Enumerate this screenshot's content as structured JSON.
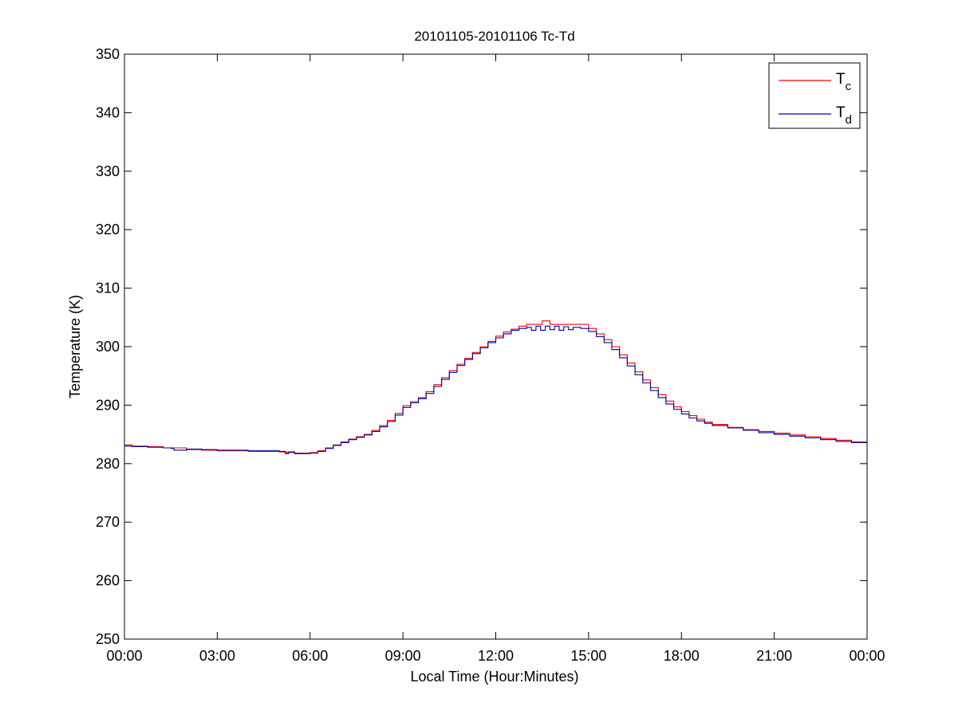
{
  "chart_data": {
    "type": "line",
    "title": "20101105-20101106 Tc-Td",
    "xlabel": "Local Time (Hour:Minutes)",
    "ylabel": "Temperature (K)",
    "xlim": [
      0,
      24
    ],
    "ylim": [
      250,
      350
    ],
    "x_ticks": [
      0,
      3,
      6,
      9,
      12,
      15,
      18,
      21,
      24
    ],
    "x_tick_labels": [
      "00:00",
      "03:00",
      "06:00",
      "09:00",
      "12:00",
      "15:00",
      "18:00",
      "21:00",
      "00:00"
    ],
    "y_ticks": [
      250,
      260,
      270,
      280,
      290,
      300,
      310,
      320,
      330,
      340,
      350
    ],
    "y_tick_labels": [
      "250",
      "260",
      "270",
      "280",
      "290",
      "300",
      "310",
      "320",
      "330",
      "340",
      "350"
    ],
    "grid": false,
    "legend_position": "top-right",
    "series": [
      {
        "name": "T_c",
        "legend_main": "T",
        "legend_sub": "c",
        "color": "#ff0000",
        "x": [
          0,
          0.25,
          0.75,
          1.25,
          2,
          2.5,
          3,
          3.5,
          4,
          4.5,
          5,
          5.25,
          5.5,
          5.75,
          6,
          6.25,
          6.5,
          6.75,
          7,
          7.25,
          7.5,
          7.75,
          8,
          8.25,
          8.5,
          8.75,
          9,
          9.25,
          9.5,
          9.75,
          10,
          10.25,
          10.5,
          10.75,
          11,
          11.25,
          11.5,
          11.75,
          12,
          12.25,
          12.5,
          12.75,
          13,
          13.25,
          13.5,
          13.6,
          13.75,
          14,
          14.25,
          14.5,
          14.75,
          15,
          15.25,
          15.5,
          15.75,
          16,
          16.25,
          16.5,
          16.75,
          17,
          17.25,
          17.5,
          17.75,
          18,
          18.25,
          18.5,
          18.75,
          19,
          19.5,
          20,
          20.5,
          21,
          21.5,
          22,
          22.5,
          23,
          23.5,
          24
        ],
        "y": [
          283.2,
          283.0,
          282.9,
          282.7,
          282.4,
          282.3,
          282.2,
          282.2,
          282.1,
          282.1,
          282.0,
          281.9,
          281.8,
          281.8,
          281.9,
          282.2,
          282.7,
          283.2,
          283.7,
          284.2,
          284.6,
          285.0,
          285.7,
          286.5,
          287.4,
          288.6,
          289.9,
          290.6,
          291.3,
          292.3,
          293.5,
          294.7,
          295.9,
          297.0,
          298.0,
          299.0,
          300.0,
          300.9,
          301.8,
          302.5,
          303.0,
          303.5,
          303.8,
          303.8,
          304.4,
          304.4,
          303.8,
          303.8,
          303.8,
          303.8,
          303.8,
          303.1,
          302.2,
          301.2,
          300.0,
          298.6,
          297.2,
          295.7,
          294.3,
          293.0,
          291.8,
          290.7,
          289.7,
          288.9,
          288.2,
          287.6,
          287.1,
          286.7,
          286.2,
          285.8,
          285.5,
          285.2,
          284.9,
          284.6,
          284.3,
          284.0,
          283.7,
          283.4
        ]
      },
      {
        "name": "T_d",
        "legend_main": "T",
        "legend_sub": "d",
        "color": "#0000a0",
        "x": [
          0,
          0.25,
          0.75,
          1.25,
          1.5,
          1.6,
          2,
          2.5,
          3,
          3.5,
          4,
          4.5,
          5,
          5.2,
          5.3,
          5.5,
          5.75,
          6,
          6.25,
          6.5,
          6.75,
          7,
          7.25,
          7.5,
          7.75,
          8,
          8.25,
          8.5,
          8.75,
          9,
          9.25,
          9.5,
          9.75,
          10,
          10.25,
          10.5,
          10.75,
          11,
          11.25,
          11.5,
          11.75,
          12,
          12.25,
          12.5,
          12.75,
          13,
          13.15,
          13.3,
          13.45,
          13.6,
          13.75,
          13.9,
          14.05,
          14.2,
          14.35,
          14.5,
          14.75,
          15,
          15.25,
          15.5,
          15.75,
          16,
          16.25,
          16.5,
          16.75,
          17,
          17.25,
          17.5,
          17.75,
          18,
          18.25,
          18.5,
          18.75,
          19,
          19.5,
          20,
          20.5,
          21,
          21.5,
          22,
          22.5,
          23,
          23.5,
          24
        ],
        "y": [
          283.0,
          282.9,
          282.8,
          282.7,
          282.6,
          282.3,
          282.5,
          282.4,
          282.3,
          282.3,
          282.2,
          282.2,
          282.1,
          281.7,
          282.0,
          281.7,
          281.7,
          281.8,
          282.1,
          282.6,
          283.1,
          283.6,
          284.1,
          284.5,
          284.9,
          285.5,
          286.3,
          287.2,
          288.3,
          289.6,
          290.4,
          291.1,
          292.0,
          293.2,
          294.4,
          295.6,
          296.8,
          297.8,
          298.8,
          299.8,
          300.7,
          301.5,
          302.2,
          302.8,
          303.1,
          303.3,
          302.8,
          303.5,
          302.8,
          303.5,
          302.9,
          303.5,
          302.8,
          303.4,
          302.9,
          303.3,
          303.1,
          302.6,
          301.7,
          300.7,
          299.5,
          298.1,
          296.7,
          295.2,
          293.8,
          292.5,
          291.3,
          290.2,
          289.3,
          288.5,
          287.8,
          287.3,
          286.9,
          286.5,
          286.1,
          285.7,
          285.3,
          285.0,
          284.7,
          284.4,
          284.1,
          283.8,
          283.6,
          283.3
        ]
      }
    ]
  }
}
